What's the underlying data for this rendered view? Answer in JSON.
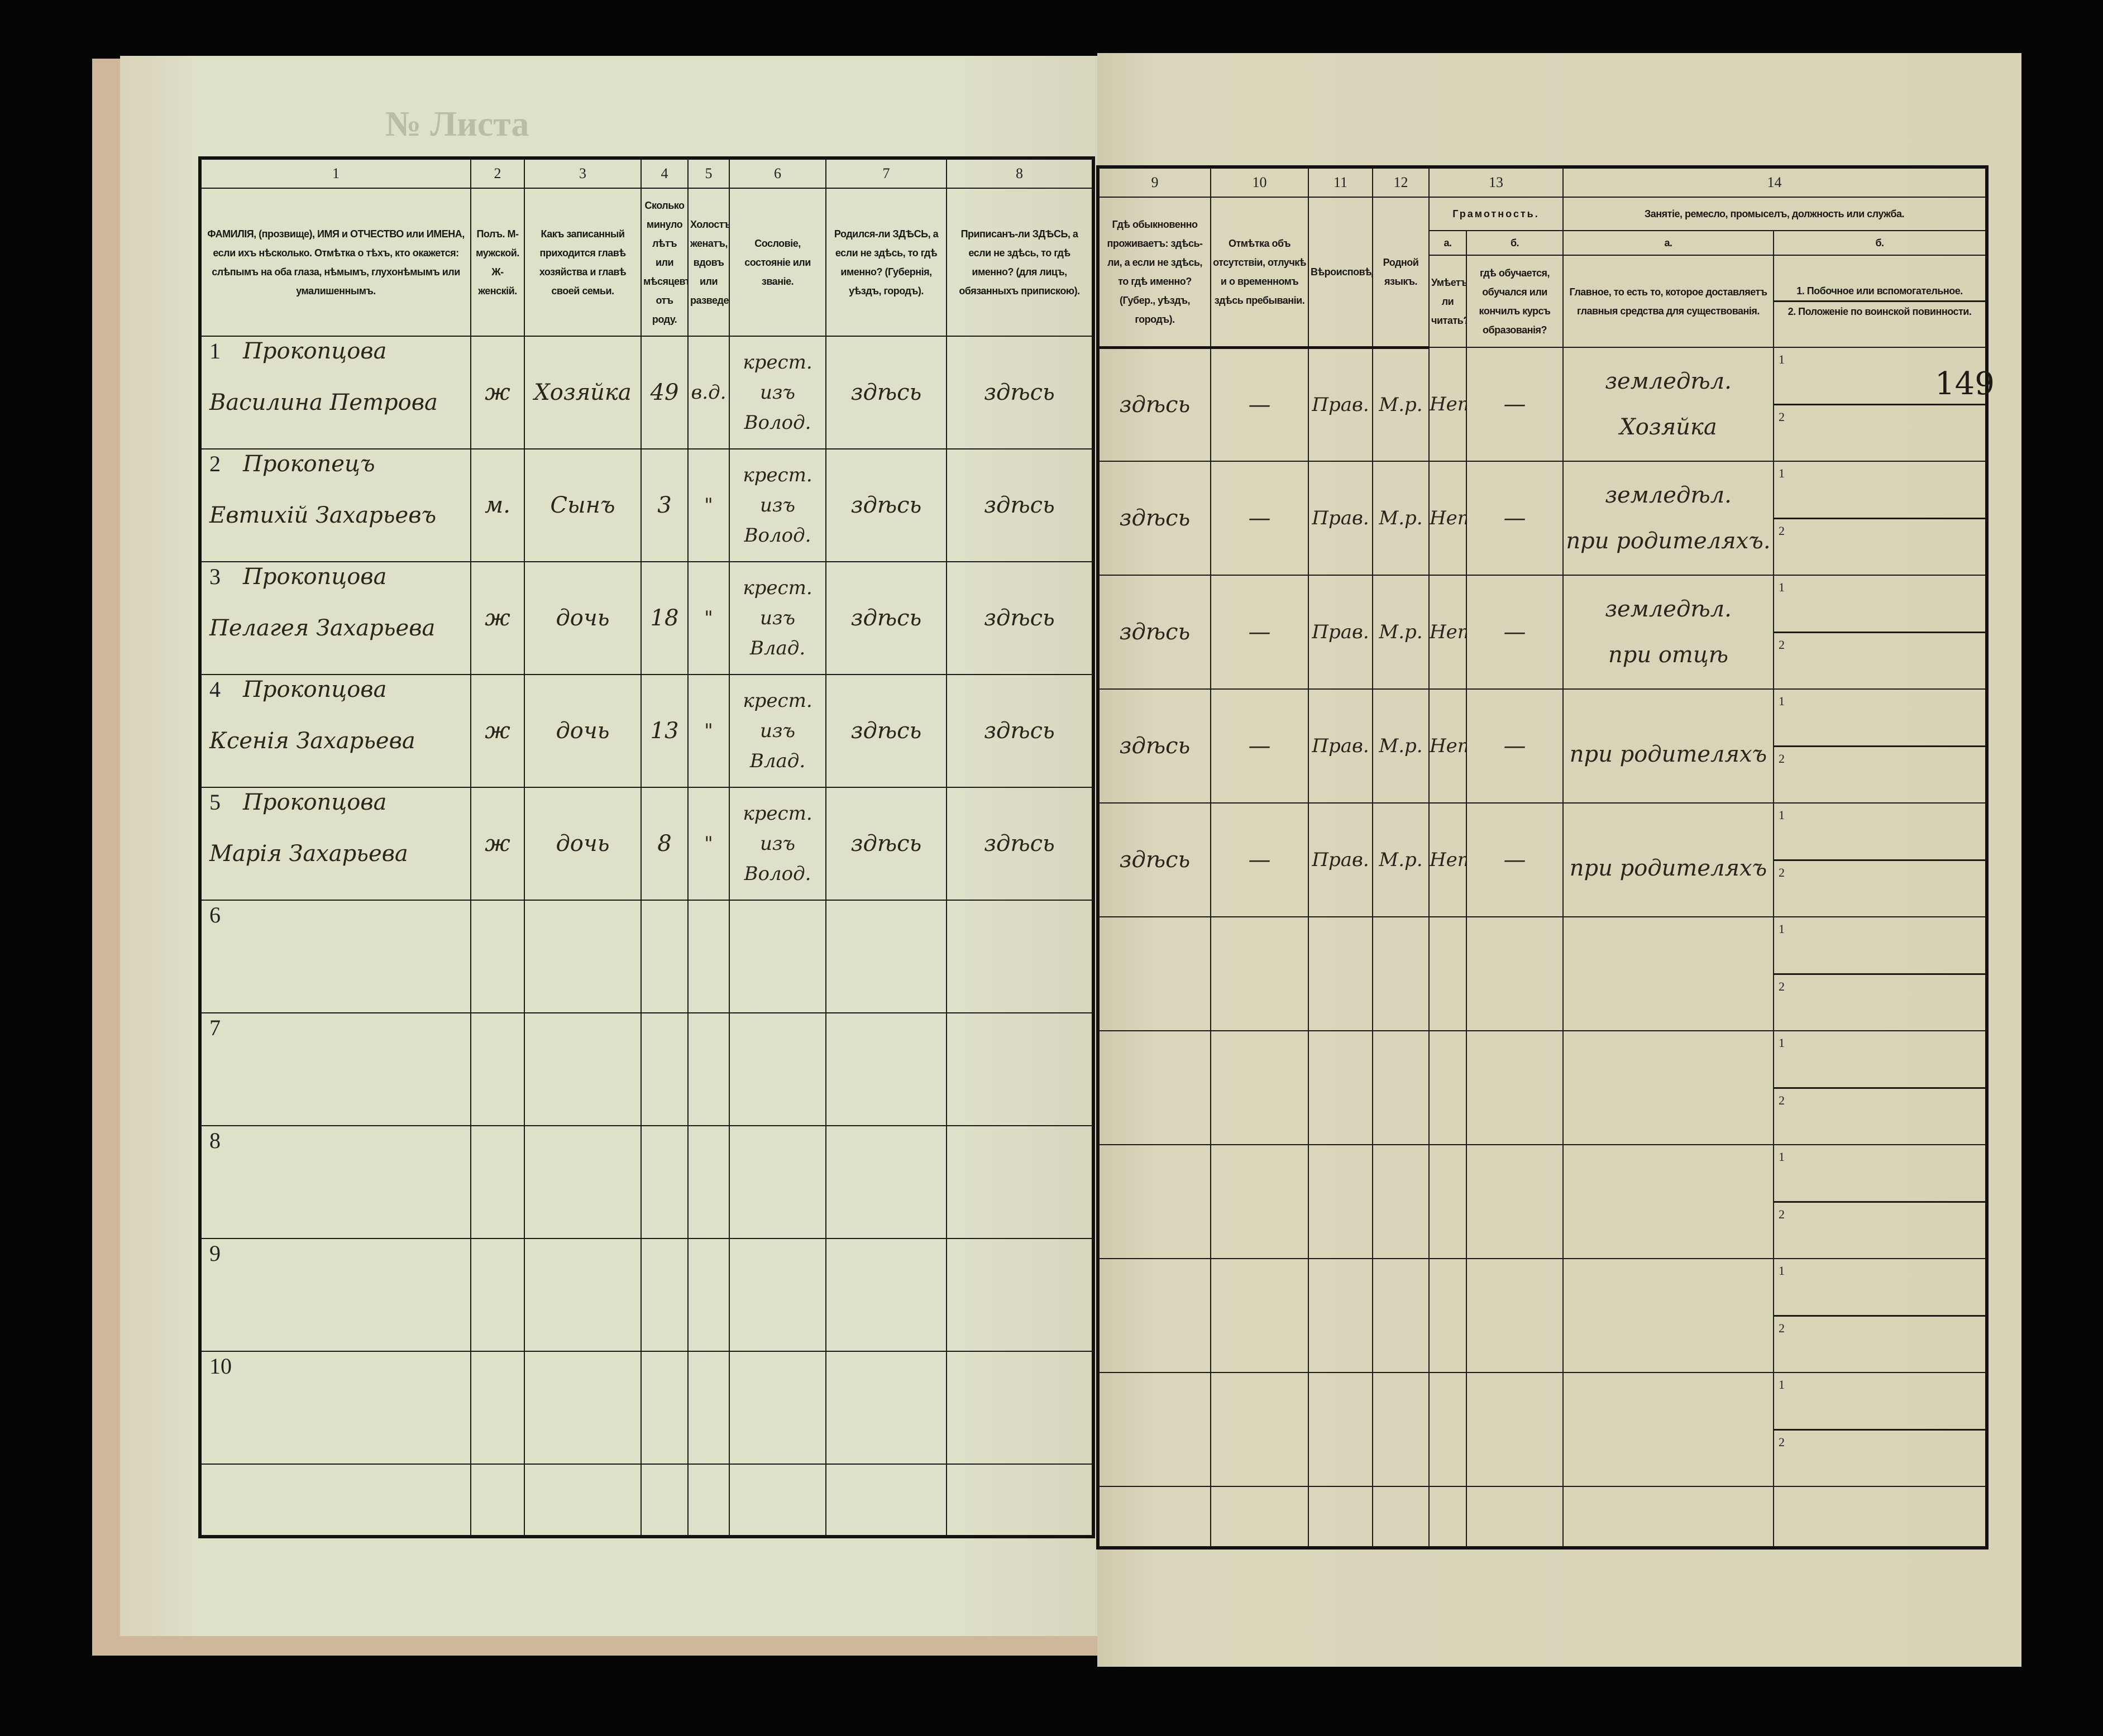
{
  "top": {
    "sheet_no_label": "№ Листа"
  },
  "page_mark": "149",
  "left_header": [
    {
      "num": "1",
      "text": "ФАМИЛІЯ, (прозвище), ИМЯ и ОТЧЕСТВО или ИМЕНА, если ихъ нѣсколько. Отмѣтка о тѣхъ, кто окажется: слѣпымъ на оба глаза, нѣмымъ, глухонѣмымъ или умалишеннымъ."
    },
    {
      "num": "2",
      "text": "Полъ. М-мужской. Ж-женскій."
    },
    {
      "num": "3",
      "text": "Какъ записанный приходится главѣ хозяйства и главѣ своей семьи."
    },
    {
      "num": "4",
      "text": "Сколько минуло лѣтъ или мѣсяцевъ отъ роду."
    },
    {
      "num": "5",
      "text": "Холостъ, женатъ, вдовъ или разведенъ."
    },
    {
      "num": "6",
      "text": "Сословіе, состояніе или званіе."
    },
    {
      "num": "7",
      "text": "Родился-ли ЗДѢСЬ, а если не здѣсь, то гдѣ именно? (Губернія, уѣздъ, городъ)."
    },
    {
      "num": "8",
      "text": "Приписанъ-ли ЗДѢСЬ, а если не здѣсь, то гдѣ именно? (для лицъ, обязанныхъ припискою)."
    }
  ],
  "right_header": {
    "nums": [
      "9",
      "10",
      "11",
      "12",
      "13",
      "14"
    ],
    "col9": "Гдѣ обыкновенно проживаетъ: здѣсь-ли, а если не здѣсь, то гдѣ именно? (Губер., уѣздъ, городъ).",
    "col10": "Отмѣтка объ отсутствіи, отлучкѣ и о временномъ здѣсь пребываніи.",
    "col11": "Вѣроисповѣданіе.",
    "col12": "Родной языкъ.",
    "col13": "Грамотность.",
    "col14": "Занятіе, ремесло, промыселъ, должность или служба.",
    "col13a": "а.",
    "col13b": "б.",
    "col14a": "а.",
    "col14b": "б.",
    "col13a_text": "Умѣетъ-ли читать?",
    "col13b_text": "гдѣ обучается, обучался или кончилъ курсъ образованія?",
    "col14a_text": "Главное, то есть то, которое доставляетъ главныя средства для существованія.",
    "col14b_1": "1. Побочное или вспомогательное.",
    "col14b_2": "2. Положеніе по воинской повинности."
  },
  "sub_labels": {
    "one": "1",
    "two": "2"
  },
  "rows": [
    {
      "n": "1",
      "surname": "Прокопцова",
      "given": "Василина Петрова",
      "sex": "ж",
      "relation": "Хозяйка",
      "age": "49",
      "marital": "в.д.",
      "estate": "крест. изъ Волод.",
      "born": "здѣсь",
      "registered": "здѣсь",
      "resides": "здѣсь",
      "absence": "—",
      "religion": "Прав.",
      "language": "М.р.",
      "literate": "Нет",
      "education": "—",
      "occupation": "земледѣл.",
      "occupation2": "Хозяйка"
    },
    {
      "n": "2",
      "surname": "Прокопецъ",
      "given": "Евтихій Захарьевъ",
      "sex": "м.",
      "relation": "Сынъ",
      "age": "3",
      "marital": "\"",
      "estate": "крест. изъ Волод.",
      "born": "здѣсь",
      "registered": "здѣсь",
      "resides": "здѣсь",
      "absence": "—",
      "religion": "Прав.",
      "language": "М.р.",
      "literate": "Нет",
      "education": "—",
      "occupation": "земледѣл.",
      "occupation2": "при родителяхъ."
    },
    {
      "n": "3",
      "surname": "Прокопцова",
      "given": "Пелагея Захарьева",
      "sex": "ж",
      "relation": "дочь",
      "age": "18",
      "marital": "\"",
      "estate": "крест. изъ Влад.",
      "born": "здѣсь",
      "registered": "здѣсь",
      "resides": "здѣсь",
      "absence": "—",
      "religion": "Прав.",
      "language": "М.р.",
      "literate": "Нет",
      "education": "—",
      "occupation": "земледѣл.",
      "occupation2": "при отцѣ"
    },
    {
      "n": "4",
      "surname": "Прокопцова",
      "given": "Ксенія Захарьева",
      "sex": "ж",
      "relation": "дочь",
      "age": "13",
      "marital": "\"",
      "estate": "крест. изъ Влад.",
      "born": "здѣсь",
      "registered": "здѣсь",
      "resides": "здѣсь",
      "absence": "—",
      "religion": "Прав.",
      "language": "М.р.",
      "literate": "Нет",
      "education": "—",
      "occupation": "",
      "occupation2": "при родителяхъ"
    },
    {
      "n": "5",
      "surname": "Прокопцова",
      "given": "Марія Захарьева",
      "sex": "ж",
      "relation": "дочь",
      "age": "8",
      "marital": "\"",
      "estate": "крест. изъ Волод.",
      "born": "здѣсь",
      "registered": "здѣсь",
      "resides": "здѣсь",
      "absence": "—",
      "religion": "Прав.",
      "language": "М.р.",
      "literate": "Нет",
      "education": "—",
      "occupation": "",
      "occupation2": "при родителяхъ"
    },
    {
      "n": "6"
    },
    {
      "n": "7"
    },
    {
      "n": "8"
    },
    {
      "n": "9"
    },
    {
      "n": "10"
    }
  ]
}
